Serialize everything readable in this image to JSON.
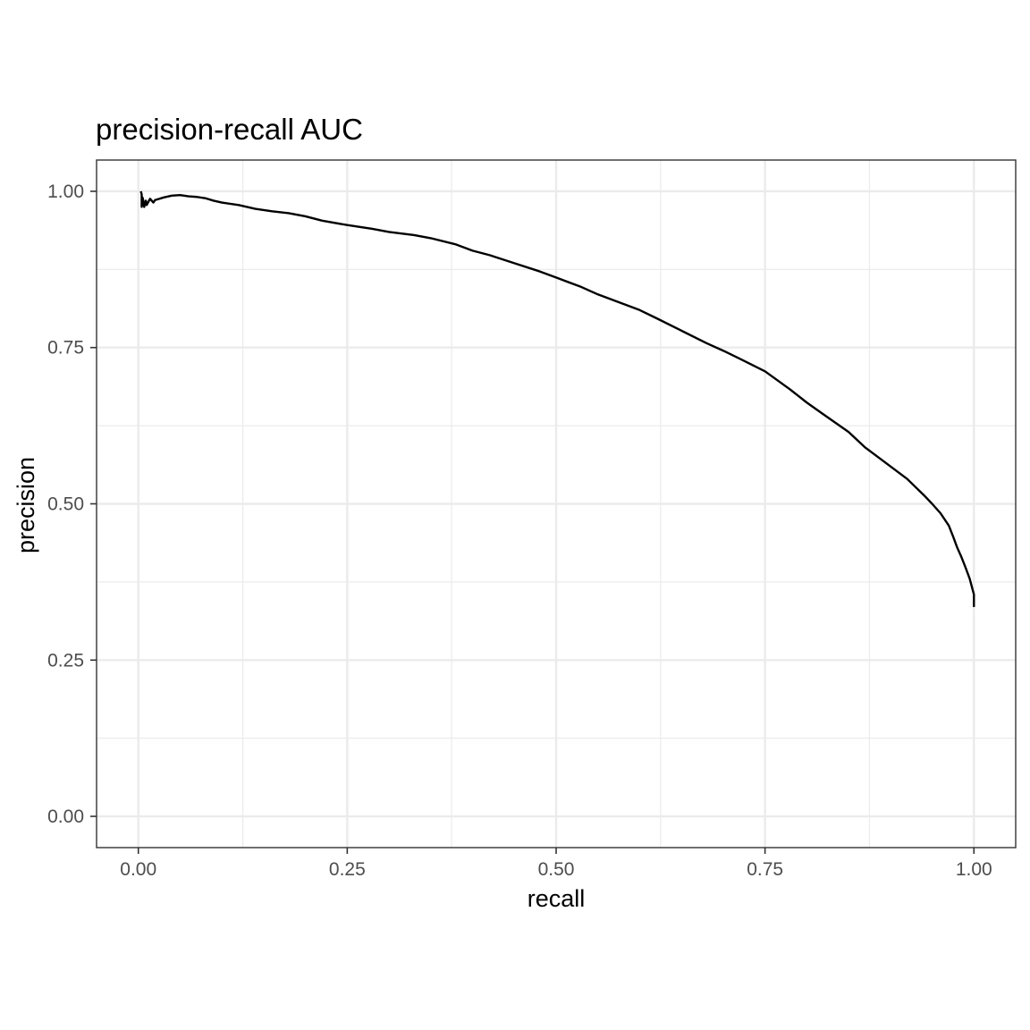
{
  "chart_data": {
    "type": "line",
    "title": "precision-recall AUC",
    "xlabel": "recall",
    "ylabel": "precision",
    "xlim": [
      -0.05,
      1.05
    ],
    "ylim": [
      -0.05,
      1.05
    ],
    "x_ticks": [
      0.0,
      0.25,
      0.5,
      0.75,
      1.0
    ],
    "x_tick_labels": [
      "0.00",
      "0.25",
      "0.50",
      "0.75",
      "1.00"
    ],
    "y_ticks": [
      0.0,
      0.25,
      0.5,
      0.75,
      1.0
    ],
    "y_tick_labels": [
      "0.00",
      "0.25",
      "0.50",
      "0.75",
      "1.00"
    ],
    "grid": true,
    "legend": "none",
    "line_color": "#000000",
    "series": [
      {
        "x": [
          0.003,
          0.004,
          0.004,
          0.005,
          0.006,
          0.007,
          0.008,
          0.009,
          0.01,
          0.012,
          0.014,
          0.016,
          0.018,
          0.02,
          0.025,
          0.03,
          0.04,
          0.05,
          0.06,
          0.07,
          0.08,
          0.09,
          0.1,
          0.12,
          0.14,
          0.16,
          0.18,
          0.2,
          0.22,
          0.25,
          0.28,
          0.3,
          0.33,
          0.35,
          0.38,
          0.4,
          0.42,
          0.45,
          0.48,
          0.5,
          0.53,
          0.55,
          0.58,
          0.6,
          0.62,
          0.65,
          0.68,
          0.7,
          0.72,
          0.75,
          0.78,
          0.8,
          0.82,
          0.85,
          0.87,
          0.88,
          0.9,
          0.92,
          0.94,
          0.95,
          0.96,
          0.97,
          0.975,
          0.98,
          0.985,
          0.99,
          0.995,
          0.998,
          1.0,
          1.0
        ],
        "y": [
          1.0,
          0.995,
          0.975,
          0.99,
          0.985,
          0.975,
          0.98,
          0.985,
          0.978,
          0.983,
          0.988,
          0.985,
          0.982,
          0.986,
          0.988,
          0.99,
          0.993,
          0.994,
          0.992,
          0.991,
          0.989,
          0.985,
          0.982,
          0.978,
          0.972,
          0.968,
          0.965,
          0.96,
          0.953,
          0.946,
          0.94,
          0.935,
          0.93,
          0.925,
          0.915,
          0.905,
          0.898,
          0.885,
          0.872,
          0.862,
          0.847,
          0.835,
          0.82,
          0.81,
          0.797,
          0.777,
          0.757,
          0.745,
          0.732,
          0.712,
          0.683,
          0.662,
          0.643,
          0.615,
          0.59,
          0.58,
          0.56,
          0.54,
          0.514,
          0.5,
          0.485,
          0.465,
          0.448,
          0.43,
          0.415,
          0.398,
          0.38,
          0.365,
          0.355,
          0.335
        ]
      }
    ]
  }
}
